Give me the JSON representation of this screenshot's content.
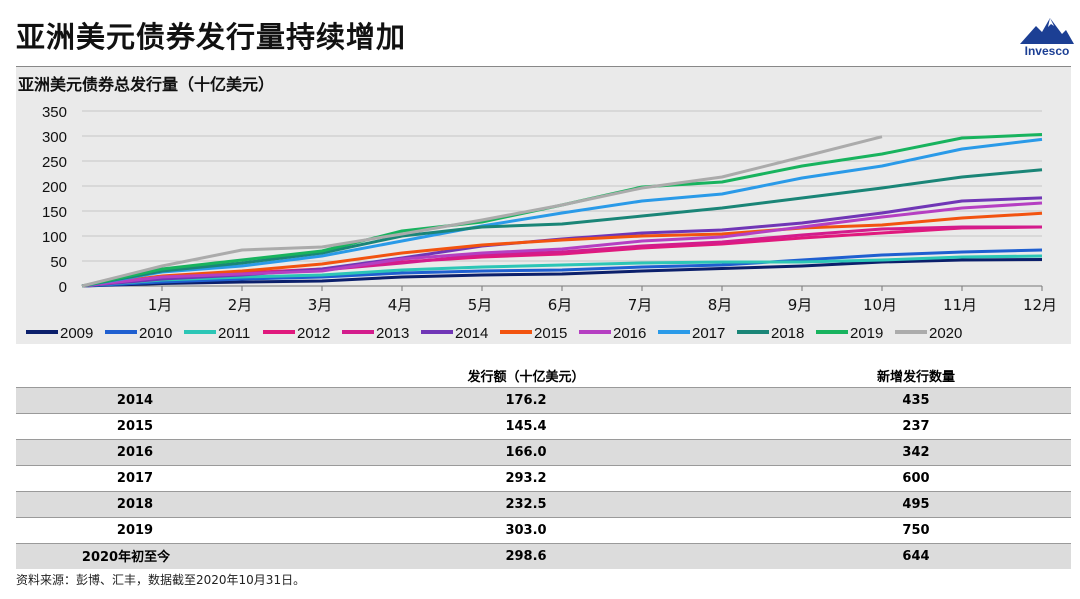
{
  "title": "亚洲美元债券发行量持续增加",
  "logo_text": "Invesco",
  "chart_data": {
    "type": "line",
    "title": "亚洲美元债券总发行量（十亿美元）",
    "categories": [
      "",
      "1月",
      "2月",
      "3月",
      "4月",
      "5月",
      "6月",
      "7月",
      "8月",
      "9月",
      "10月",
      "11月",
      "12月"
    ],
    "y_ticks": [
      0,
      50,
      100,
      150,
      200,
      250,
      300,
      350
    ],
    "ylim": [
      0,
      350
    ],
    "legend_position": "bottom",
    "series": [
      {
        "name": "2009",
        "color": "#0b1f6b",
        "values": [
          0,
          5,
          8,
          10,
          18,
          22,
          24,
          30,
          35,
          40,
          48,
          52,
          53
        ]
      },
      {
        "name": "2010",
        "color": "#1f5fd0",
        "values": [
          0,
          8,
          14,
          18,
          26,
          30,
          32,
          38,
          42,
          52,
          62,
          68,
          72
        ]
      },
      {
        "name": "2011",
        "color": "#2cc6b6",
        "values": [
          0,
          12,
          18,
          22,
          32,
          38,
          42,
          46,
          48,
          48,
          52,
          58,
          60
        ]
      },
      {
        "name": "2012",
        "color": "#e0197d",
        "values": [
          0,
          18,
          26,
          34,
          48,
          58,
          64,
          76,
          84,
          96,
          106,
          116,
          118
        ]
      },
      {
        "name": "2013",
        "color": "#d31c8c",
        "values": [
          0,
          16,
          24,
          32,
          46,
          62,
          68,
          80,
          88,
          102,
          114,
          118,
          118
        ]
      },
      {
        "name": "2014",
        "color": "#7036b6",
        "values": [
          0,
          14,
          22,
          34,
          56,
          80,
          94,
          106,
          112,
          126,
          146,
          170,
          176.2
        ]
      },
      {
        "name": "2015",
        "color": "#f2530f",
        "values": [
          0,
          20,
          30,
          44,
          66,
          82,
          92,
          100,
          104,
          116,
          122,
          136,
          145.4
        ]
      },
      {
        "name": "2016",
        "color": "#b53fc2",
        "values": [
          0,
          18,
          24,
          30,
          54,
          66,
          74,
          90,
          98,
          118,
          138,
          156,
          166.0
        ]
      },
      {
        "name": "2017",
        "color": "#2a9ae8",
        "values": [
          0,
          28,
          40,
          60,
          90,
          120,
          146,
          170,
          184,
          216,
          240,
          274,
          293.2
        ]
      },
      {
        "name": "2018",
        "color": "#1a8577",
        "values": [
          0,
          30,
          46,
          66,
          100,
          118,
          124,
          140,
          156,
          176,
          196,
          218,
          232.5
        ]
      },
      {
        "name": "2019",
        "color": "#18b35e",
        "values": [
          0,
          34,
          52,
          70,
          110,
          128,
          162,
          198,
          208,
          240,
          264,
          296,
          303.0
        ]
      },
      {
        "name": "2020",
        "color": "#ababab",
        "values": [
          0,
          40,
          72,
          78,
          104,
          132,
          162,
          196,
          218,
          258,
          298.6,
          null,
          null
        ]
      }
    ]
  },
  "table": {
    "headers": [
      "",
      "发行额（十亿美元）",
      "新增发行数量"
    ],
    "rows": [
      [
        "2014",
        "176.2",
        "435"
      ],
      [
        "2015",
        "145.4",
        "237"
      ],
      [
        "2016",
        "166.0",
        "342"
      ],
      [
        "2017",
        "293.2",
        "600"
      ],
      [
        "2018",
        "232.5",
        "495"
      ],
      [
        "2019",
        "303.0",
        "750"
      ],
      [
        "2020年初至今",
        "298.6",
        "644"
      ]
    ]
  },
  "footnote": "资料来源：彭博、汇丰，数据截至2020年10月31日。"
}
